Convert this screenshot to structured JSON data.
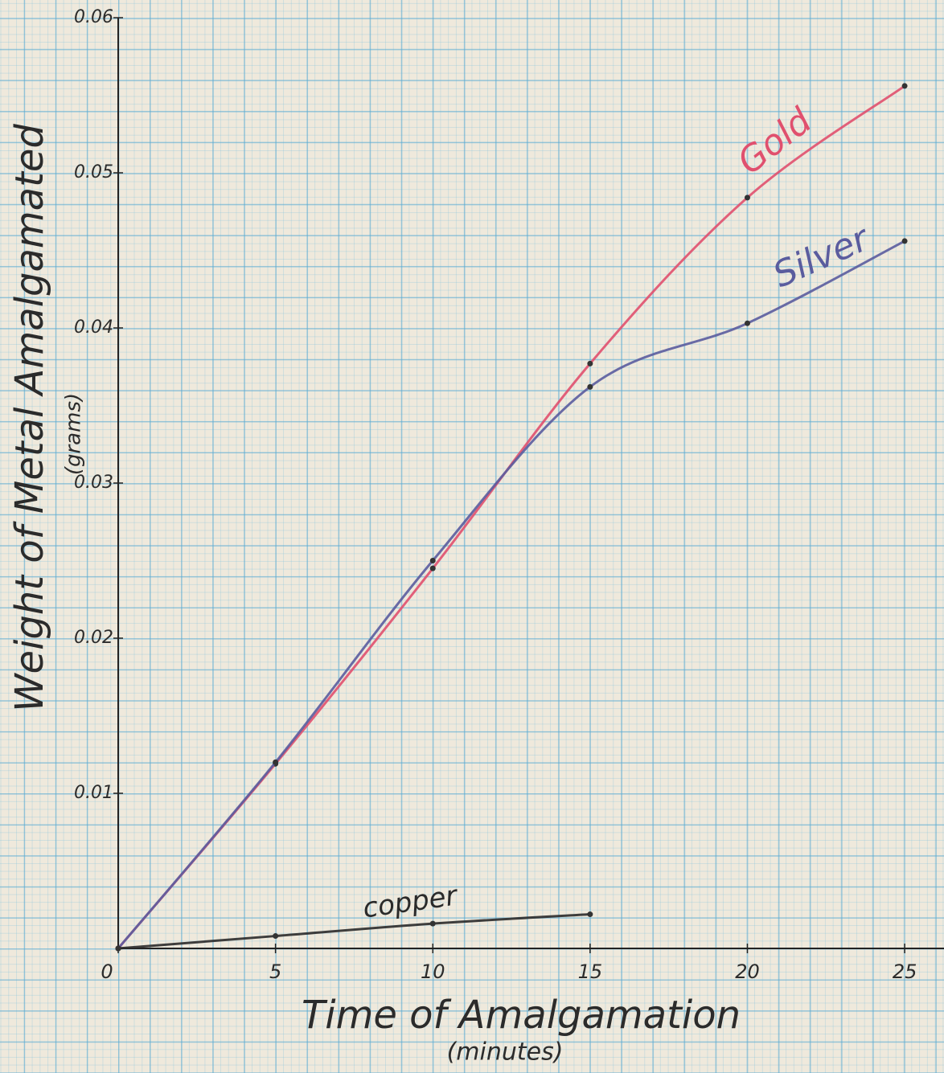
{
  "chart_data": {
    "type": "line",
    "title_y": "Weight of Metal Amalgamated",
    "subtitle_y": "(grams)",
    "title_x": "Time of Amalgamation",
    "subtitle_x": "(minutes)",
    "x": [
      0,
      5,
      10,
      15,
      20,
      25
    ],
    "series": [
      {
        "name": "Gold",
        "color": "#e0506e",
        "values": [
          0,
          0.0119,
          0.0245,
          0.0377,
          0.0484,
          0.0556
        ]
      },
      {
        "name": "Silver",
        "color": "#5a5c9e",
        "values": [
          0,
          0.012,
          0.025,
          0.0362,
          0.0403,
          0.0456
        ]
      },
      {
        "name": "copper",
        "color": "#2a2a2a",
        "values": [
          0,
          0.0008,
          0.0016,
          0.0022,
          null,
          null
        ]
      }
    ],
    "xlim": [
      0,
      26.25
    ],
    "xticks": [
      0,
      5,
      10,
      15,
      20,
      25
    ],
    "ylim": [
      0,
      0.06
    ],
    "yticks": [
      0.01,
      0.02,
      0.03,
      0.04,
      0.05,
      0.06
    ]
  }
}
